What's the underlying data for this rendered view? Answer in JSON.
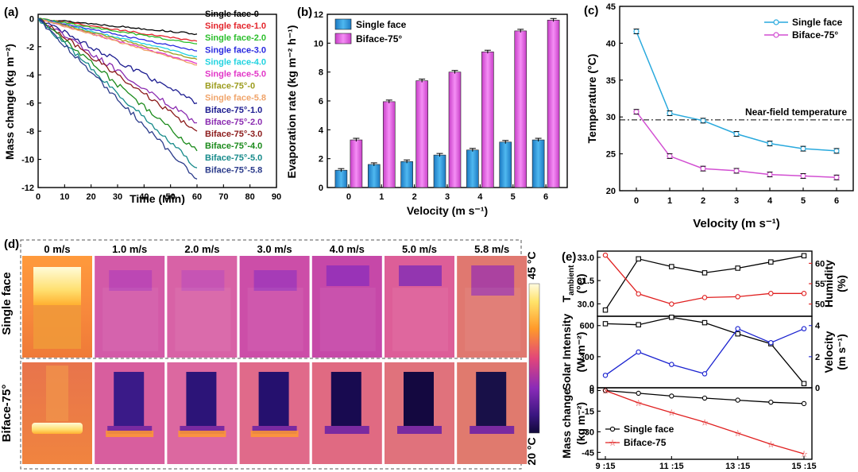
{
  "chart_data": [
    {
      "panel": "(a)",
      "type": "line",
      "xlabel": "Time (Min)",
      "ylabel": "Mass change (kg m⁻²)",
      "xlim": [
        0,
        90
      ],
      "ylim": [
        -12,
        0.3
      ],
      "xticks": [
        0,
        10,
        20,
        30,
        40,
        50,
        60,
        70,
        80,
        90
      ],
      "yticks": [
        0,
        -2,
        -4,
        -6,
        -8,
        -10,
        -12
      ],
      "series": [
        {
          "name": "Single face-0",
          "color": "#000000",
          "end": -1.1
        },
        {
          "name": "Single face-1.0",
          "color": "#e3242b",
          "end": -1.6
        },
        {
          "name": "Single face-2.0",
          "color": "#2bbf2b",
          "end": -1.8
        },
        {
          "name": "Single face-3.0",
          "color": "#2a2ae0",
          "end": -2.3
        },
        {
          "name": "Single face-4.0",
          "color": "#22d3e0",
          "end": -2.7
        },
        {
          "name": "Single face-5.0",
          "color": "#e236c8",
          "end": -3.2
        },
        {
          "name": "Biface-75°-0",
          "color": "#9c9c1e",
          "end": -2.9
        },
        {
          "name": "Single face-5.8",
          "color": "#f0a46a",
          "end": -3.3
        },
        {
          "name": "Biface-75°-1.0",
          "color": "#1c1c90",
          "end": -6.0
        },
        {
          "name": "Biface-75°-2.0",
          "color": "#8a2bb0",
          "end": -7.4
        },
        {
          "name": "Biface-75°-3.0",
          "color": "#8b1a1a",
          "end": -8.0
        },
        {
          "name": "Biface-75°-4.0",
          "color": "#1a8a1a",
          "end": -9.4
        },
        {
          "name": "Biface-75°-5.0",
          "color": "#168a8a",
          "end": -10.6
        },
        {
          "name": "Biface-75°-5.8",
          "color": "#2a3a8a",
          "end": -11.4
        }
      ]
    },
    {
      "panel": "(b)",
      "type": "bar",
      "xlabel": "Velocity (m s⁻¹)",
      "ylabel": "Evaporation rate (kg m⁻² h⁻¹)",
      "categories": [
        "0",
        "1",
        "2",
        "3",
        "4",
        "5",
        "6"
      ],
      "ylim": [
        0,
        12
      ],
      "yticks": [
        0,
        2,
        4,
        6,
        8,
        10,
        12
      ],
      "series": [
        {
          "name": "Single face",
          "color": "#1f8fd6",
          "values": [
            1.2,
            1.6,
            1.8,
            2.25,
            2.6,
            3.15,
            3.3
          ]
        },
        {
          "name": "Biface-75°",
          "color": "#e457e4",
          "values": [
            3.3,
            5.95,
            7.4,
            8.0,
            9.4,
            10.85,
            11.6
          ]
        }
      ]
    },
    {
      "panel": "(c)",
      "type": "line",
      "xlabel": "Velocity (m s⁻¹)",
      "ylabel": "Temperature (°C)",
      "xlim": [
        -0.5,
        6.5
      ],
      "ylim": [
        20,
        45
      ],
      "xticks": [
        0,
        1,
        2,
        3,
        4,
        5,
        6
      ],
      "yticks": [
        20,
        25,
        30,
        35,
        40,
        45
      ],
      "x": [
        0,
        1,
        2,
        3,
        4,
        5,
        6
      ],
      "series": [
        {
          "name": "Single face",
          "color": "#29a9dd",
          "values": [
            41.6,
            30.5,
            29.5,
            27.7,
            26.4,
            25.7,
            25.4
          ]
        },
        {
          "name": "Biface-75°",
          "color": "#d24fd2",
          "values": [
            30.7,
            24.7,
            23.0,
            22.7,
            22.2,
            22.0,
            21.8
          ]
        }
      ],
      "reference": {
        "label": "Near-field temperature",
        "value": 29.6
      }
    },
    {
      "panel": "(d)",
      "type": "table",
      "columns": [
        "0 m/s",
        "1.0 m/s",
        "2.0 m/s",
        "3.0 m/s",
        "4.0 m/s",
        "5.0 m/s",
        "5.8 m/s"
      ],
      "rows": [
        "Single face",
        "Biface-75°"
      ],
      "colorbar": {
        "max": "45 °C",
        "min": "20 °C"
      }
    },
    {
      "panel": "(e)",
      "type": "line",
      "xticks": [
        "9 :15",
        "11 :15",
        "13 :15",
        "15 :15"
      ],
      "x": [
        0,
        1,
        2,
        3,
        4,
        5,
        6
      ],
      "subplots": [
        {
          "ylabel_main": "T",
          "ylabel_sub": "ambient",
          "ylabel_unit": "(°C)",
          "ylim": [
            29.2,
            33.4
          ],
          "yticks": [
            "30.0",
            "31.5",
            "33.0"
          ],
          "ytick_values": [
            30.0,
            31.5,
            33.0
          ],
          "series": [
            {
              "name": "T ambient",
              "color": "#000000",
              "values": [
                29.6,
                32.9,
                32.4,
                32.0,
                32.3,
                32.7,
                33.1
              ]
            }
          ],
          "right": {
            "ylabel": "Humidity",
            "unit": "(%)",
            "color": "#e02020",
            "ylim": [
              47,
              63
            ],
            "yticks": [
              "50",
              "55",
              "60"
            ],
            "ytick_values": [
              50,
              55,
              60
            ],
            "series": [
              {
                "name": "Humidity",
                "color": "#e02020",
                "values": [
                  62.0,
                  52.5,
                  50.0,
                  51.6,
                  51.8,
                  52.6,
                  52.6
                ]
              }
            ]
          }
        },
        {
          "ylabel_main": "Solar Intensity",
          "ylabel_unit": "(W m⁻²)",
          "ylim": [
            0,
            690
          ],
          "yticks": [
            "0",
            "300",
            "600"
          ],
          "ytick_values": [
            0,
            300,
            600
          ],
          "series": [
            {
              "name": "Solar Intensity",
              "color": "#000000",
              "values": [
                618,
                608,
                680,
                628,
                520,
                425,
                40
              ]
            }
          ],
          "right": {
            "ylabel": "Velocity",
            "unit": "(m s⁻¹)",
            "color": "#1a22d0",
            "ylim": [
              0,
              4.6
            ],
            "yticks": [
              "0",
              "2",
              "4"
            ],
            "ytick_values": [
              0,
              2,
              4
            ],
            "series": [
              {
                "name": "Velocity",
                "color": "#1a22d0",
                "values": [
                  0.8,
                  2.3,
                  1.5,
                  0.9,
                  3.8,
                  2.9,
                  3.8
                ]
              }
            ]
          }
        },
        {
          "ylabel_main": "Mass change",
          "ylabel_unit": "(kg m⁻²)",
          "ylim": [
            -50,
            2
          ],
          "yticks": [
            "0",
            "-15",
            "-30",
            "-45"
          ],
          "ytick_values": [
            0,
            -15,
            -30,
            -45
          ],
          "series": [
            {
              "name": "Single face",
              "color": "#000000",
              "values": [
                0,
                -2,
                -4,
                -5.5,
                -7,
                -8.5,
                -9.5
              ]
            },
            {
              "name": "Biface-75",
              "color": "#e02020",
              "values": [
                0,
                -9,
                -16,
                -23,
                -31,
                -39,
                -46
              ]
            }
          ]
        }
      ]
    }
  ]
}
